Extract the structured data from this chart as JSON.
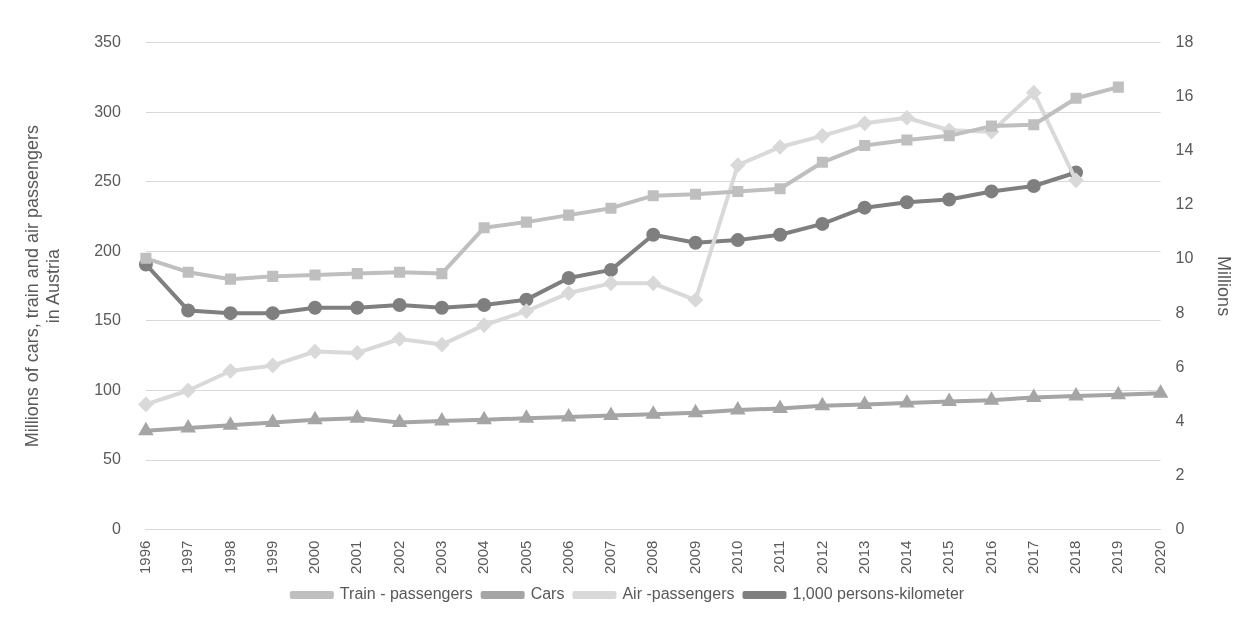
{
  "chart_data": {
    "type": "line",
    "categories": [
      "1996",
      "1997",
      "1998",
      "1999",
      "2000",
      "2001",
      "2002",
      "2003",
      "2004",
      "2005",
      "2006",
      "2007",
      "2008",
      "2009",
      "2010",
      "2011",
      "2012",
      "2013",
      "2014",
      "2015",
      "2016",
      "2017",
      "2018",
      "2019",
      "2020"
    ],
    "ylabel": "Millions of cars, train and air passengers in Austria",
    "y2label": "Millions",
    "ylim": [
      0,
      350
    ],
    "yticks": [
      0,
      50,
      100,
      150,
      200,
      250,
      300,
      350
    ],
    "y2lim": [
      0,
      18
    ],
    "y2ticks": [
      0,
      2,
      4,
      6,
      8,
      10,
      12,
      14,
      16,
      18
    ],
    "grid": "y",
    "legend": "bottom",
    "series": [
      {
        "name": "Train - passengers",
        "color": "#bfbfbf",
        "marker": "square",
        "values": [
          195,
          185,
          180,
          182,
          183,
          184,
          185,
          184,
          217,
          221,
          226,
          231,
          240,
          241,
          243,
          245,
          264,
          276,
          280,
          283,
          290,
          291,
          310,
          318,
          null
        ]
      },
      {
        "name": "Cars",
        "color": "#a5a5a5",
        "marker": "triangle",
        "values": [
          71,
          73,
          75,
          77,
          79,
          80,
          77,
          78,
          79,
          80,
          81,
          82,
          83,
          84,
          86,
          87,
          89,
          90,
          91,
          92,
          93,
          95,
          96,
          97,
          98
        ]
      },
      {
        "name": "Air -passengers",
        "color": "#d9d9d9",
        "marker": "diamond",
        "values": [
          90,
          100,
          114,
          118,
          128,
          127,
          137,
          133,
          147,
          157,
          170,
          177,
          177,
          165,
          262,
          275,
          283,
          292,
          296,
          287,
          286,
          314,
          251,
          null,
          null
        ]
      },
      {
        "name": "1,000 persons-kilometer",
        "color": "#7f7f7f",
        "marker": "circle",
        "axis": "y2",
        "values": [
          9.8,
          8.1,
          8.0,
          8.0,
          8.2,
          8.2,
          8.3,
          8.2,
          8.3,
          8.5,
          9.3,
          9.6,
          10.9,
          10.6,
          10.7,
          10.9,
          11.3,
          11.9,
          12.1,
          12.2,
          12.5,
          12.7,
          13.2,
          null,
          null
        ]
      }
    ]
  }
}
